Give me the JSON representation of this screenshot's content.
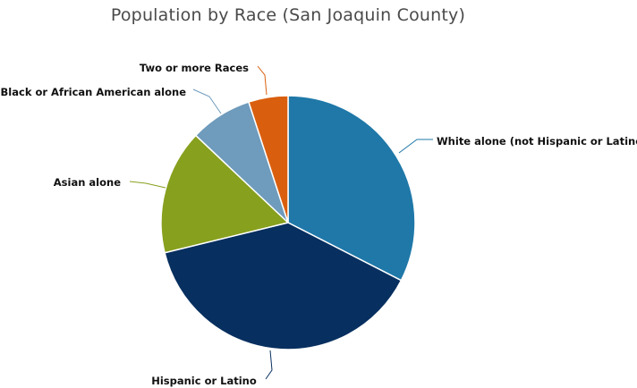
{
  "chart_data": {
    "type": "pie",
    "title": "Population by Race (San Joaquin County)",
    "start_angle_deg": 0,
    "direction": "clockwise",
    "slices": [
      {
        "label": "White alone (not Hispanic or Latino)",
        "value": 32.4,
        "color": "#1f78a8"
      },
      {
        "label": "Hispanic or Latino",
        "value": 38.5,
        "color": "#072f5f"
      },
      {
        "label": "Asian alone",
        "value": 15.8,
        "color": "#87a01e"
      },
      {
        "label": "Black or African American alone",
        "value": 7.9,
        "color": "#6f9bbc"
      },
      {
        "label": "Two or more Races",
        "value": 5.0,
        "color": "#d95f0e"
      }
    ]
  }
}
